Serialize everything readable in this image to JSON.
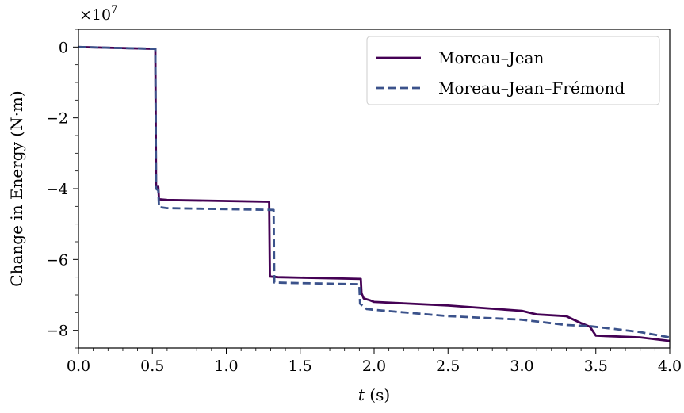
{
  "chart_data": {
    "type": "line",
    "xlabel_var": "t",
    "xlabel_unit": " (s)",
    "ylabel": "Change in Energy (N·m)",
    "y_offset_label": "×10",
    "y_offset_exponent": "7",
    "xlim": [
      0.0,
      4.0
    ],
    "ylim": [
      -8.5,
      0.5
    ],
    "x_ticks": [
      0.0,
      0.5,
      1.0,
      1.5,
      2.0,
      2.5,
      3.0,
      3.5,
      4.0
    ],
    "x_tick_labels": [
      "0.0",
      "0.5",
      "1.0",
      "1.5",
      "2.0",
      "2.5",
      "3.0",
      "3.5",
      "4.0"
    ],
    "y_ticks": [
      0,
      -2,
      -4,
      -6,
      -8
    ],
    "y_tick_labels": [
      "0",
      "−2",
      "−4",
      "−6",
      "−8"
    ],
    "legend_position": "top-right",
    "grid": false,
    "series": [
      {
        "name": "Moreau–Jean",
        "color": "#440154",
        "dash": "solid",
        "points": [
          [
            0.0,
            0.0
          ],
          [
            0.52,
            -0.05
          ],
          [
            0.525,
            -3.95
          ],
          [
            0.54,
            -3.95
          ],
          [
            0.545,
            -4.3
          ],
          [
            0.6,
            -4.32
          ],
          [
            1.29,
            -4.37
          ],
          [
            1.295,
            -6.48
          ],
          [
            1.35,
            -6.5
          ],
          [
            1.91,
            -6.55
          ],
          [
            1.915,
            -6.95
          ],
          [
            1.93,
            -7.1
          ],
          [
            1.97,
            -7.15
          ],
          [
            2.0,
            -7.2
          ],
          [
            2.5,
            -7.3
          ],
          [
            3.0,
            -7.45
          ],
          [
            3.1,
            -7.55
          ],
          [
            3.3,
            -7.6
          ],
          [
            3.4,
            -7.8
          ],
          [
            3.46,
            -7.9
          ],
          [
            3.5,
            -8.15
          ],
          [
            3.8,
            -8.2
          ],
          [
            4.0,
            -8.3
          ]
        ]
      },
      {
        "name": "Moreau–Jean–Frémond",
        "color": "#3b528b",
        "dash": "dashed",
        "points": [
          [
            0.0,
            0.0
          ],
          [
            0.52,
            -0.05
          ],
          [
            0.525,
            -4.0
          ],
          [
            0.54,
            -4.05
          ],
          [
            0.545,
            -4.52
          ],
          [
            0.6,
            -4.55
          ],
          [
            1.32,
            -4.6
          ],
          [
            1.325,
            -6.65
          ],
          [
            1.4,
            -6.66
          ],
          [
            1.9,
            -6.7
          ],
          [
            1.905,
            -7.25
          ],
          [
            1.95,
            -7.4
          ],
          [
            2.0,
            -7.42
          ],
          [
            2.5,
            -7.6
          ],
          [
            3.0,
            -7.7
          ],
          [
            3.3,
            -7.85
          ],
          [
            3.45,
            -7.88
          ],
          [
            3.6,
            -7.95
          ],
          [
            3.8,
            -8.05
          ],
          [
            4.0,
            -8.2
          ]
        ]
      }
    ]
  }
}
